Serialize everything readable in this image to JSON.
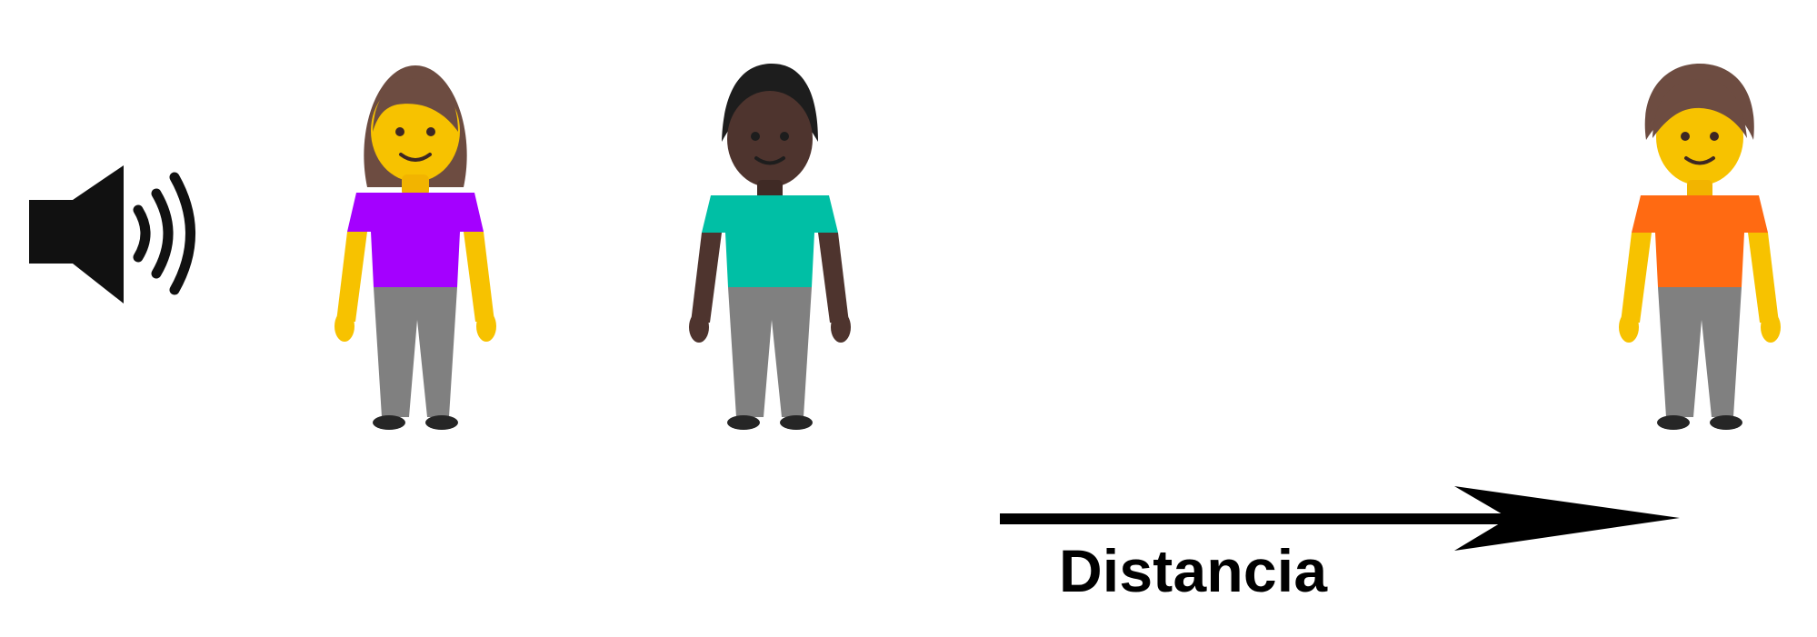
{
  "labels": {
    "distance": "Distancia"
  },
  "icons": {
    "speaker": "speaker-sound-icon",
    "person_1": "standing-woman-icon",
    "person_2": "standing-man-icon",
    "person_3": "standing-person-icon",
    "arrow": "right-arrow-icon"
  },
  "colors": {
    "background": "#ffffff",
    "speaker": "#111111",
    "arrow": "#000000",
    "woman_shirt": "#a400ff",
    "man_shirt": "#00bfa5",
    "person_shirt": "#ff6a12",
    "skin_light": "#f7c200",
    "skin_dark": "#4e342e",
    "pants": "#808080",
    "hair_brown": "#6d4c41",
    "hair_black": "#1d1d1d"
  }
}
